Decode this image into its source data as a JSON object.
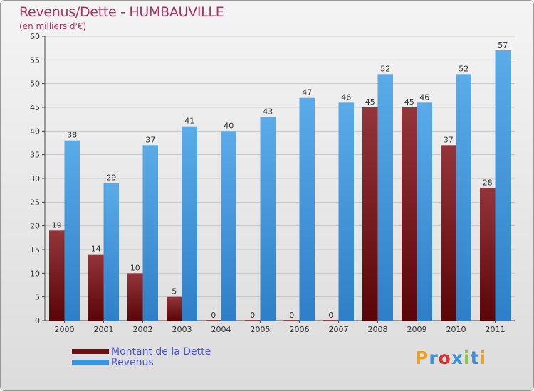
{
  "header": {
    "title": "Revenus/Dette - HUMBAUVILLE",
    "subtitle": "(en milliers d'€)"
  },
  "legend": {
    "items": [
      {
        "label": "Montant de la Dette",
        "color": "#6b0f14"
      },
      {
        "label": "Revenus",
        "color": "#3b93dd"
      }
    ]
  },
  "logo": {
    "letters": [
      "P",
      "r",
      "o",
      "x",
      "i",
      "t",
      "i"
    ],
    "colors": [
      "#f0a020",
      "#3a8fd8",
      "#d8322b",
      "#3a8fd8",
      "#8cc63f",
      "#3a8fd8",
      "#f0a020"
    ]
  },
  "chart_data": {
    "type": "bar",
    "title": "Revenus/Dette - HUMBAUVILLE",
    "ylabel": "(en milliers d'€)",
    "xlabel": "",
    "categories": [
      "2000",
      "2001",
      "2002",
      "2003",
      "2004",
      "2005",
      "2006",
      "2007",
      "2008",
      "2009",
      "2010",
      "2011"
    ],
    "series": [
      {
        "name": "Montant de la Dette",
        "color": "#6b0f14",
        "values": [
          19,
          14,
          10,
          5,
          0,
          0,
          0,
          0,
          45,
          45,
          37,
          28
        ]
      },
      {
        "name": "Revenus",
        "color": "#3b93dd",
        "values": [
          38,
          29,
          37,
          41,
          40,
          43,
          47,
          46,
          52,
          46,
          52,
          57
        ]
      }
    ],
    "ylim": [
      0,
      60
    ],
    "yticks": [
      0,
      5,
      10,
      15,
      20,
      25,
      30,
      35,
      40,
      45,
      50,
      55,
      60
    ],
    "grid": true,
    "legend_position": "bottom-left"
  }
}
